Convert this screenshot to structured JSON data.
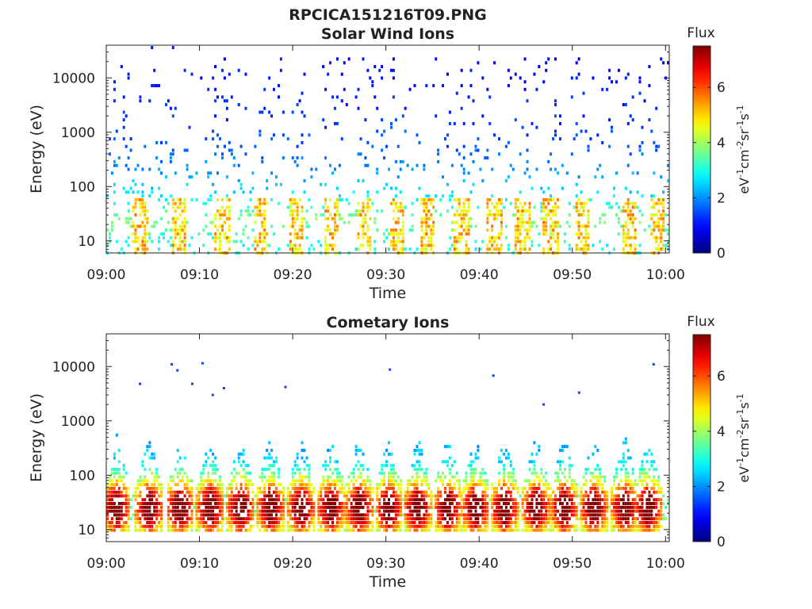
{
  "figure": {
    "filename": "RPCICA151216T09.PNG"
  },
  "colorbar": {
    "title": "Flux",
    "unit_parts": [
      "eV",
      "-1",
      "cm",
      "-2",
      "sr",
      "-1",
      "s",
      "-1"
    ],
    "ticks": [
      "0",
      "2",
      "4",
      "6"
    ],
    "range": [
      0,
      7.5
    ],
    "colormap": "jet"
  },
  "chart_data": [
    {
      "type": "heatmap",
      "title": "Solar Wind Ions",
      "xlabel": "Time",
      "ylabel": "Energy (eV)",
      "x_ticks": [
        "09:00",
        "09:10",
        "09:20",
        "09:30",
        "09:40",
        "09:50",
        "10:00"
      ],
      "y_ticks": [
        "10",
        "100",
        "1000",
        "10000"
      ],
      "y_scale": "log",
      "y_range": [
        6,
        40000
      ],
      "x_range_minutes": [
        0,
        60.4
      ],
      "x_start": "09:00",
      "dominant_flux_by_energy": [
        {
          "energy_eV": 15000,
          "flux": 1.0
        },
        {
          "energy_eV": 3000,
          "flux": 1.2
        },
        {
          "energy_eV": 500,
          "flux": 1.6
        },
        {
          "energy_eV": 150,
          "flux": 2.2
        },
        {
          "energy_eV": 60,
          "flux": 2.8
        },
        {
          "energy_eV": 25,
          "flux": 3.8
        },
        {
          "energy_eV": 8,
          "flux": 2.9
        }
      ],
      "burst_times_minutes": [
        3.5,
        7.7,
        12.3,
        16.5,
        20.3,
        24.0,
        27.6,
        31.0,
        34.3,
        38.0,
        41.5,
        44.5,
        47.6,
        51.0,
        56.0,
        59.0
      ]
    },
    {
      "type": "heatmap",
      "title": "Cometary Ions",
      "xlabel": "Time",
      "ylabel": "Energy (eV)",
      "x_ticks": [
        "09:00",
        "09:10",
        "09:20",
        "09:30",
        "09:40",
        "09:50",
        "10:00"
      ],
      "y_ticks": [
        "10",
        "100",
        "1000",
        "10000"
      ],
      "y_scale": "log",
      "y_range": [
        6,
        40000
      ],
      "x_range_minutes": [
        0,
        60.4
      ],
      "x_start": "09:00",
      "burst_times_minutes": [
        1.0,
        4.5,
        7.8,
        11.0,
        14.3,
        17.5,
        20.8,
        24.0,
        27.0,
        30.2,
        33.3,
        36.5,
        39.5,
        42.6,
        46.0,
        49.0,
        52.2,
        55.5,
        58.0
      ],
      "peak_energy_eV": 25,
      "peak_flux": 6.5,
      "scattered_points": [
        {
          "time_minutes": 3.5,
          "energy_eV": 4800
        },
        {
          "time_minutes": 6.9,
          "energy_eV": 11000
        },
        {
          "time_minutes": 7.5,
          "energy_eV": 8500
        },
        {
          "time_minutes": 9.1,
          "energy_eV": 4800
        },
        {
          "time_minutes": 10.2,
          "energy_eV": 11500
        },
        {
          "time_minutes": 11.3,
          "energy_eV": 3000
        },
        {
          "time_minutes": 12.5,
          "energy_eV": 4000
        },
        {
          "time_minutes": 19.1,
          "energy_eV": 4200
        },
        {
          "time_minutes": 30.3,
          "energy_eV": 8800
        },
        {
          "time_minutes": 41.4,
          "energy_eV": 6800
        },
        {
          "time_minutes": 46.8,
          "energy_eV": 2000
        },
        {
          "time_minutes": 50.6,
          "energy_eV": 3300
        },
        {
          "time_minutes": 58.6,
          "energy_eV": 11000
        }
      ]
    }
  ]
}
